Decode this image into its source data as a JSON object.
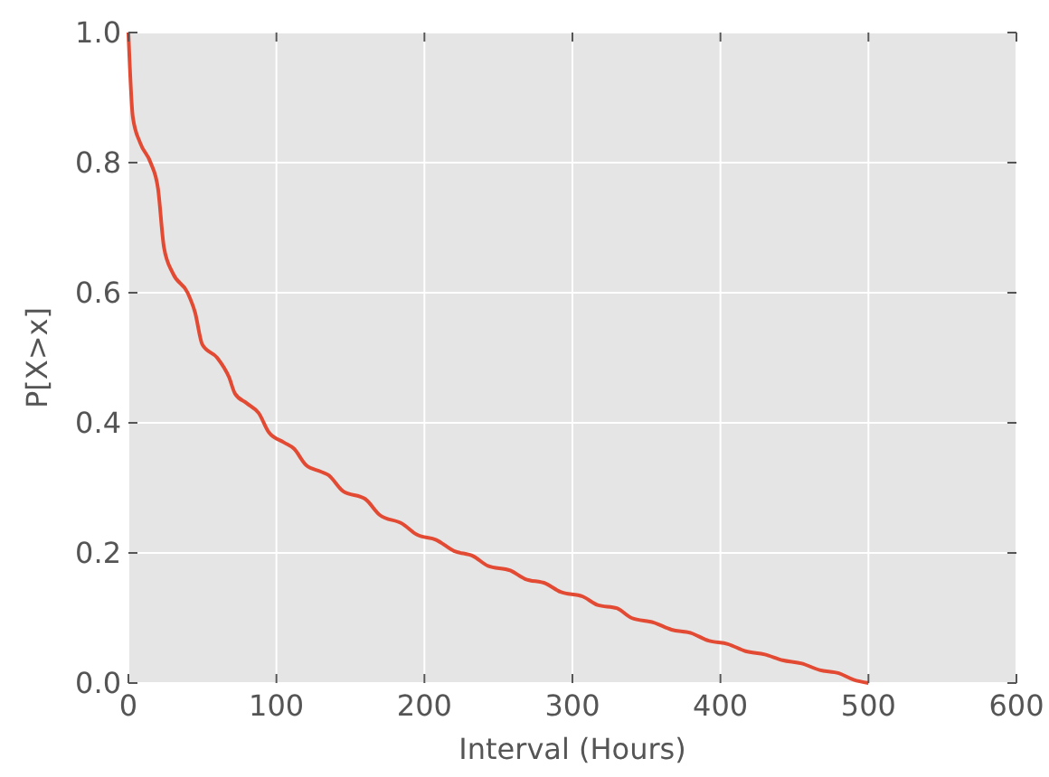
{
  "chart_data": {
    "type": "line",
    "xlabel": "Interval (Hours)",
    "ylabel": "P[X>x]",
    "grid": true,
    "xlim": [
      0,
      600
    ],
    "xticks": [
      0,
      100,
      200,
      300,
      400,
      500,
      600
    ],
    "ylim": [
      0,
      1
    ],
    "yticks": [
      {
        "value": 0,
        "label": "0.0"
      },
      {
        "value": 0.2,
        "label": "0.2"
      },
      {
        "value": 0.4,
        "label": "0.4"
      },
      {
        "value": 0.6,
        "label": "0.6"
      },
      {
        "value": 0.8,
        "label": "0.8"
      },
      {
        "value": 1,
        "label": "1.0"
      }
    ],
    "series": [
      {
        "color": "#e24a33",
        "x": [
          0,
          3,
          8,
          15,
          20,
          24,
          30,
          40,
          45,
          50,
          60,
          68,
          72,
          80,
          88,
          95,
          105,
          112,
          120,
          130,
          135,
          145,
          160,
          170,
          185,
          195,
          208,
          220,
          233,
          243,
          258,
          268,
          282,
          292,
          307,
          317,
          330,
          340,
          355,
          367,
          380,
          392,
          405,
          417,
          430,
          442,
          455,
          467,
          480,
          490,
          500
        ],
        "values": [
          1.0,
          0.87,
          0.83,
          0.8,
          0.76,
          0.67,
          0.63,
          0.6,
          0.57,
          0.52,
          0.5,
          0.47,
          0.445,
          0.43,
          0.415,
          0.385,
          0.37,
          0.36,
          0.335,
          0.325,
          0.32,
          0.295,
          0.283,
          0.258,
          0.245,
          0.228,
          0.22,
          0.203,
          0.195,
          0.18,
          0.173,
          0.16,
          0.153,
          0.14,
          0.133,
          0.12,
          0.115,
          0.1,
          0.093,
          0.082,
          0.077,
          0.065,
          0.06,
          0.049,
          0.044,
          0.035,
          0.03,
          0.02,
          0.015,
          0.005,
          0.0
        ]
      }
    ]
  }
}
